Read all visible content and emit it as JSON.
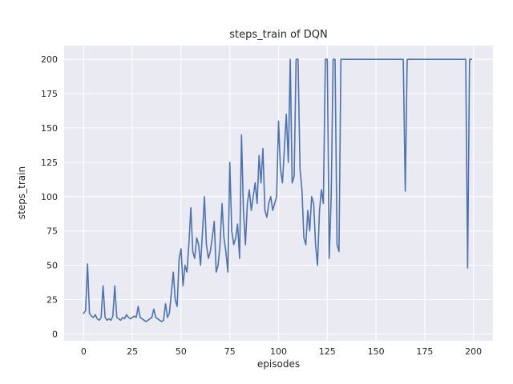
{
  "chart_data": {
    "type": "line",
    "title": "steps_train of DQN",
    "xlabel": "episodes",
    "ylabel": "steps_train",
    "x_ticks": [
      0,
      25,
      50,
      75,
      100,
      125,
      150,
      175,
      200
    ],
    "y_ticks": [
      0,
      25,
      50,
      75,
      100,
      125,
      150,
      175,
      200
    ],
    "xlim": [
      -10,
      210
    ],
    "ylim": [
      -5,
      210
    ],
    "grid": true,
    "legend": "none",
    "line_color": "#4c72b0",
    "axes_bg": "#eaeaf2",
    "grid_color": "#ffffff",
    "text_color": "#262626",
    "series": [
      {
        "name": "steps_train",
        "x_start": 0,
        "x_step": 1,
        "values": [
          15,
          17,
          51,
          15,
          13,
          12,
          14,
          11,
          10,
          12,
          35,
          12,
          10,
          11,
          10,
          13,
          35,
          12,
          11,
          10,
          12,
          11,
          14,
          12,
          11,
          12,
          13,
          12,
          20,
          12,
          11,
          10,
          9,
          10,
          11,
          12,
          18,
          12,
          11,
          10,
          9,
          10,
          22,
          12,
          15,
          30,
          45,
          25,
          20,
          55,
          62,
          35,
          50,
          45,
          65,
          92,
          60,
          55,
          70,
          65,
          50,
          75,
          100,
          65,
          55,
          60,
          70,
          82,
          45,
          50,
          65,
          95,
          70,
          60,
          45,
          125,
          75,
          65,
          70,
          80,
          55,
          145,
          90,
          65,
          95,
          105,
          90,
          100,
          110,
          95,
          130,
          110,
          135,
          90,
          85,
          95,
          100,
          90,
          95,
          100,
          155,
          120,
          110,
          135,
          160,
          125,
          200,
          110,
          115,
          200,
          200,
          120,
          105,
          70,
          65,
          90,
          75,
          100,
          95,
          65,
          50,
          90,
          105,
          95,
          200,
          200,
          55,
          100,
          200,
          200,
          65,
          60,
          200,
          200,
          200,
          200,
          200,
          200,
          200,
          200,
          200,
          200,
          200,
          200,
          200,
          200,
          200,
          200,
          200,
          200,
          200,
          200,
          200,
          200,
          200,
          200,
          200,
          200,
          200,
          200,
          200,
          200,
          200,
          200,
          200,
          104,
          200,
          200,
          200,
          200,
          200,
          200,
          200,
          200,
          200,
          200,
          200,
          200,
          200,
          200,
          200,
          200,
          200,
          200,
          200,
          200,
          200,
          200,
          200,
          200,
          200,
          200,
          200,
          200,
          200,
          200,
          200,
          48,
          200,
          200
        ]
      }
    ]
  }
}
